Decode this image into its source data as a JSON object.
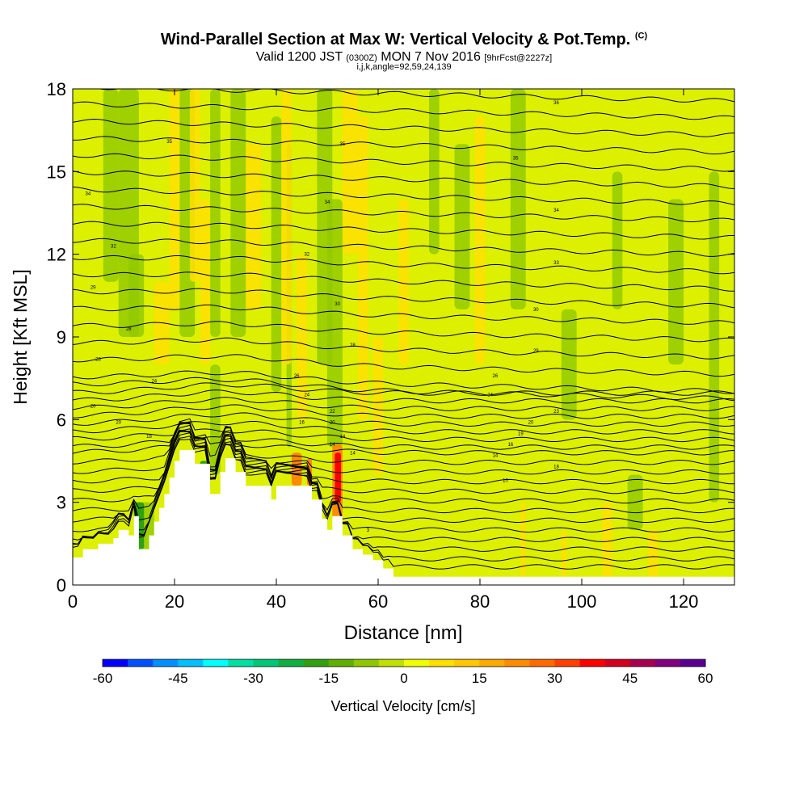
{
  "header": {
    "title": "Wind-Parallel Section at Max W: Vertical Velocity & Pot.Temp.",
    "title_mark": "(C)",
    "valid_prefix": "Valid 1200 JST",
    "valid_utc": "(0300Z)",
    "valid_date": "MON 7 Nov 2016",
    "forecast_note": "[9hrFcst@2227z]",
    "indices": "i,j,k,angle=92,59,24,139"
  },
  "chart_data": {
    "type": "heatmap",
    "xlabel": "Distance [nm]",
    "ylabel": "Height [Kft MSL]",
    "xlim": [
      0,
      130
    ],
    "ylim": [
      0,
      18
    ],
    "xticks": [
      0,
      20,
      40,
      60,
      80,
      100,
      120
    ],
    "yticks": [
      0,
      3,
      6,
      9,
      12,
      15,
      18
    ],
    "colorbar": {
      "label": "Vertical Velocity [cm/s]",
      "range": [
        -60,
        60
      ],
      "step": 5,
      "tick_labels": [
        "-60",
        "-45",
        "-30",
        "-15",
        "0",
        "15",
        "30",
        "45",
        "60"
      ],
      "colors": [
        "#0000ff",
        "#0050ff",
        "#0090ff",
        "#00c0ff",
        "#00ffff",
        "#00e0a0",
        "#00c878",
        "#10b040",
        "#30a010",
        "#60b000",
        "#90c800",
        "#c0e000",
        "#f0ff00",
        "#ffe000",
        "#ffc800",
        "#ffaa00",
        "#ff8c00",
        "#ff6a00",
        "#ff4000",
        "#ff0000",
        "#d40020",
        "#a80050",
        "#800080",
        "#5a0090"
      ]
    },
    "terrain_kft": [
      [
        0,
        1
      ],
      [
        2,
        1
      ],
      [
        2,
        1.3
      ],
      [
        5,
        1.3
      ],
      [
        5,
        1.5
      ],
      [
        8,
        1.5
      ],
      [
        8,
        1.7
      ],
      [
        9,
        1.7
      ],
      [
        9,
        2
      ],
      [
        11,
        2
      ],
      [
        11,
        1.8
      ],
      [
        12,
        1.8
      ],
      [
        12,
        2.5
      ],
      [
        13,
        2.5
      ],
      [
        13,
        1.3
      ],
      [
        15,
        1.3
      ],
      [
        15,
        1.8
      ],
      [
        16,
        1.8
      ],
      [
        16,
        2.3
      ],
      [
        17,
        2.3
      ],
      [
        17,
        2.8
      ],
      [
        18,
        2.8
      ],
      [
        18,
        3.3
      ],
      [
        19,
        3.3
      ],
      [
        19,
        3.9
      ],
      [
        20,
        3.9
      ],
      [
        20,
        4.5
      ],
      [
        21,
        4.5
      ],
      [
        21,
        4.9
      ],
      [
        24,
        4.9
      ],
      [
        24,
        4.4
      ],
      [
        27,
        4.4
      ],
      [
        27,
        3.3
      ],
      [
        29,
        3.3
      ],
      [
        29,
        4.1
      ],
      [
        30,
        4.1
      ],
      [
        30,
        4.6
      ],
      [
        32,
        4.6
      ],
      [
        32,
        4.1
      ],
      [
        34,
        4.1
      ],
      [
        34,
        3.6
      ],
      [
        39,
        3.6
      ],
      [
        39,
        3.1
      ],
      [
        40,
        3.1
      ],
      [
        40,
        3.6
      ],
      [
        47,
        3.6
      ],
      [
        47,
        3.1
      ],
      [
        49,
        3.1
      ],
      [
        49,
        2.4
      ],
      [
        50,
        2.4
      ],
      [
        50,
        2
      ],
      [
        51,
        2
      ],
      [
        51,
        2.5
      ],
      [
        53,
        2.5
      ],
      [
        53,
        1.8
      ],
      [
        55,
        1.8
      ],
      [
        55,
        1.3
      ],
      [
        57,
        1.3
      ],
      [
        57,
        1.1
      ],
      [
        59,
        1.1
      ],
      [
        59,
        0.9
      ],
      [
        61,
        0.9
      ],
      [
        61,
        0.6
      ],
      [
        63,
        0.6
      ],
      [
        63,
        0.3
      ],
      [
        130,
        0.3
      ]
    ],
    "isentrope_labels": [
      {
        "text": "36",
        "x": 95,
        "y": 17.5
      },
      {
        "text": "35",
        "x": 19,
        "y": 16.1
      },
      {
        "text": "35",
        "x": 53,
        "y": 16
      },
      {
        "text": "34",
        "x": 3,
        "y": 14.2
      },
      {
        "text": "34",
        "x": 50,
        "y": 13.9
      },
      {
        "text": "34",
        "x": 95,
        "y": 13.6
      },
      {
        "text": "35",
        "x": 87,
        "y": 15.5
      },
      {
        "text": "32",
        "x": 8,
        "y": 12.3
      },
      {
        "text": "32",
        "x": 46,
        "y": 12
      },
      {
        "text": "33",
        "x": 95,
        "y": 11.7
      },
      {
        "text": "29",
        "x": 4,
        "y": 10.8
      },
      {
        "text": "30",
        "x": 52,
        "y": 10.2
      },
      {
        "text": "30",
        "x": 91,
        "y": 10
      },
      {
        "text": "28",
        "x": 11,
        "y": 9.3
      },
      {
        "text": "28",
        "x": 55,
        "y": 8.7
      },
      {
        "text": "29",
        "x": 91,
        "y": 8.5
      },
      {
        "text": "23",
        "x": 5,
        "y": 8.2
      },
      {
        "text": "24",
        "x": 16,
        "y": 7.4
      },
      {
        "text": "26",
        "x": 44,
        "y": 7.6
      },
      {
        "text": "26",
        "x": 83,
        "y": 7.6
      },
      {
        "text": "24",
        "x": 46,
        "y": 6.9
      },
      {
        "text": "24",
        "x": 82,
        "y": 6.9
      },
      {
        "text": "23",
        "x": 95,
        "y": 6.3
      },
      {
        "text": "20",
        "x": 4,
        "y": 6.5
      },
      {
        "text": "20",
        "x": 9,
        "y": 5.9
      },
      {
        "text": "22",
        "x": 51,
        "y": 6.3
      },
      {
        "text": "20",
        "x": 90,
        "y": 5.9
      },
      {
        "text": "16",
        "x": 45,
        "y": 5.9
      },
      {
        "text": "20",
        "x": 51,
        "y": 5.9
      },
      {
        "text": "19",
        "x": 88,
        "y": 5.5
      },
      {
        "text": "18",
        "x": 15,
        "y": 5.4
      },
      {
        "text": "14",
        "x": 53,
        "y": 5.4
      },
      {
        "text": "16",
        "x": 86,
        "y": 5.1
      },
      {
        "text": "14",
        "x": 51,
        "y": 5.1
      },
      {
        "text": "14",
        "x": 83,
        "y": 4.7
      },
      {
        "text": "14",
        "x": 55,
        "y": 4.8
      },
      {
        "text": "18",
        "x": 95,
        "y": 4.3
      },
      {
        "text": "10",
        "x": 85,
        "y": 3.8
      },
      {
        "text": "3",
        "x": 58,
        "y": 2
      }
    ]
  }
}
